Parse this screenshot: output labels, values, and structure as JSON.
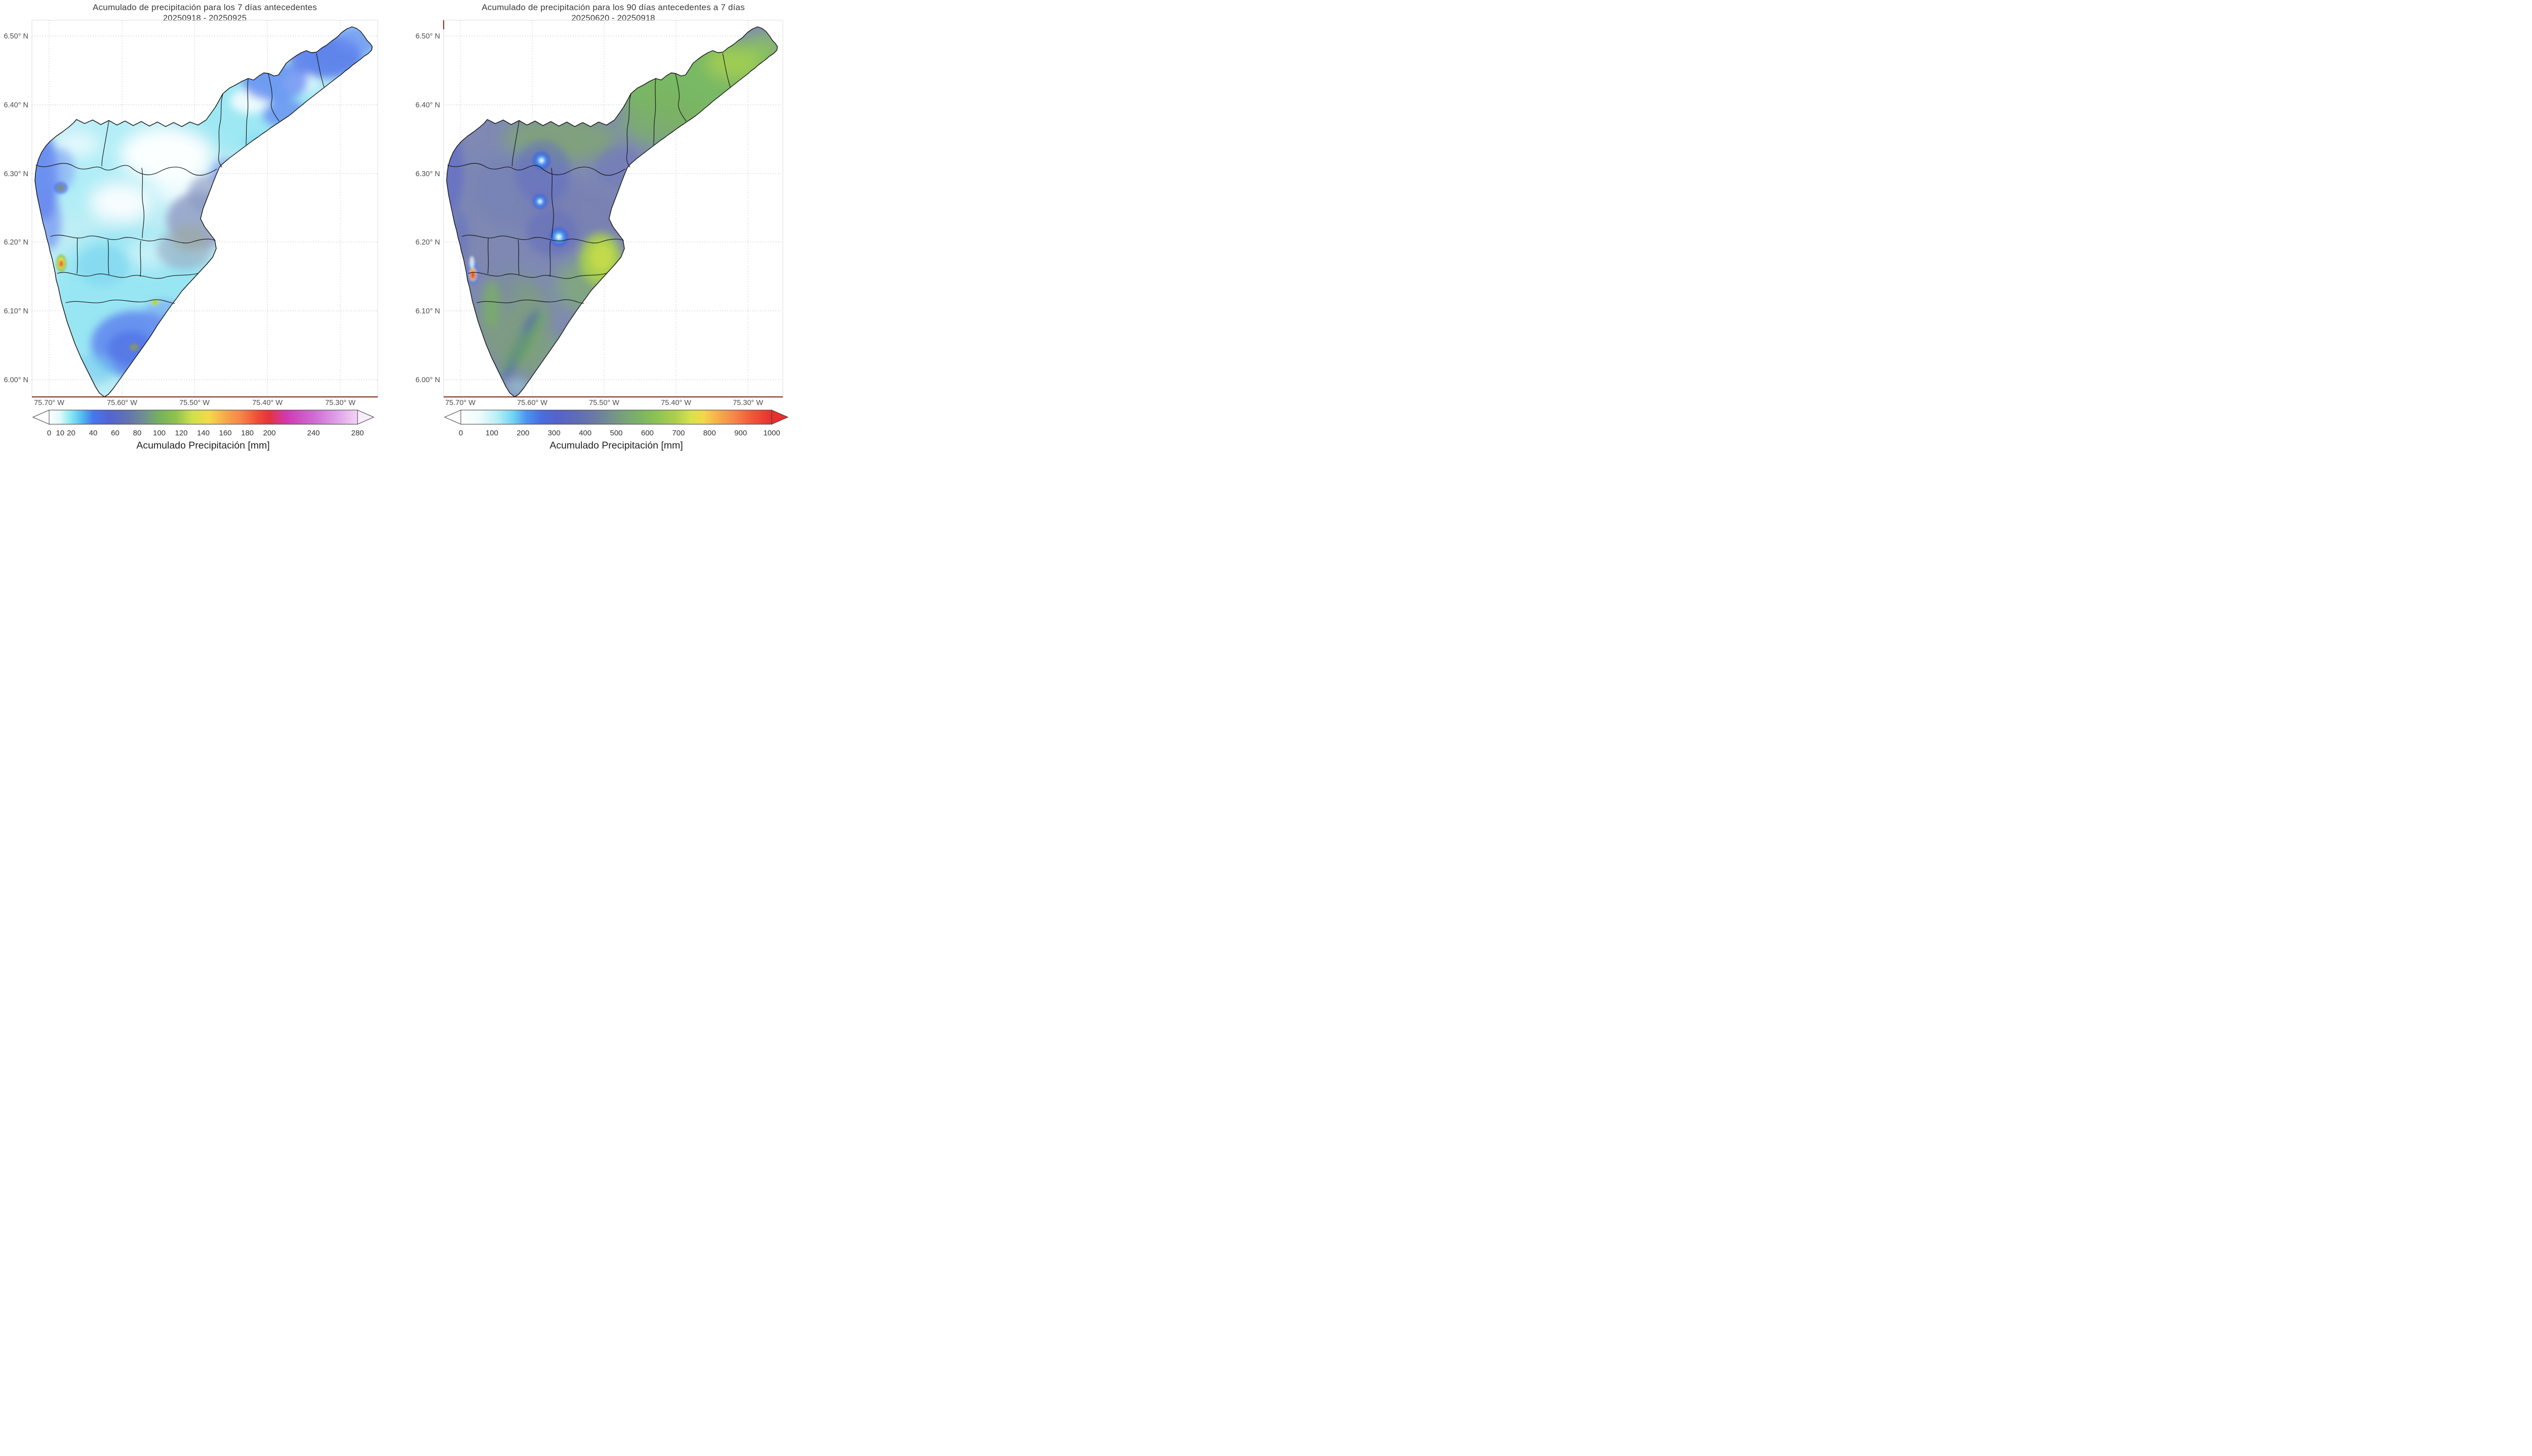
{
  "figure": {
    "background": "#ffffff",
    "spine_color": "#8a3b2c",
    "boundary_color": "#111111",
    "grid_style": "dotted light gray"
  },
  "chart_data": [
    {
      "type": "heatmap",
      "map_region": "Valle de Aburrá river basin with municipal boundaries",
      "title": "Acumulado de precipitación para los 7 días antecedentes",
      "subtitle": "20250918 - 20250925",
      "x_axis": {
        "ticks": [
          "75.70° W",
          "75.60° W",
          "75.50° W",
          "75.40° W",
          "75.30° W"
        ],
        "range_deg_west": [
          75.72,
          75.25
        ]
      },
      "y_axis": {
        "ticks": [
          "6.50° N",
          "6.40° N",
          "6.30° N",
          "6.20° N",
          "6.10° N",
          "6.00° N"
        ],
        "range_deg_north": [
          5.98,
          6.52
        ]
      },
      "colorbar": {
        "label": "Acumulado Precipitación [mm]",
        "orientation": "horizontal",
        "extend": "both",
        "vmin": 0,
        "vmax": 280,
        "tick_values": [
          0,
          10,
          20,
          40,
          60,
          80,
          100,
          120,
          140,
          160,
          180,
          200,
          240,
          280
        ],
        "stops": [
          [
            0,
            "#ffffff"
          ],
          [
            10,
            "#dff9fa"
          ],
          [
            20,
            "#86e7f3"
          ],
          [
            30,
            "#53b9f2"
          ],
          [
            40,
            "#4677ee"
          ],
          [
            55,
            "#5264d2"
          ],
          [
            70,
            "#6172b2"
          ],
          [
            85,
            "#6f8c95"
          ],
          [
            100,
            "#74b25e"
          ],
          [
            115,
            "#8fc24f"
          ],
          [
            130,
            "#cfe04a"
          ],
          [
            145,
            "#f4d94a"
          ],
          [
            160,
            "#f6a94a"
          ],
          [
            175,
            "#f7814a"
          ],
          [
            190,
            "#f04a37"
          ],
          [
            200,
            "#e5333f"
          ],
          [
            215,
            "#d238b0"
          ],
          [
            240,
            "#cd6bd2"
          ],
          [
            265,
            "#e2aaeb"
          ],
          [
            280,
            "#f3d4f6"
          ]
        ],
        "under_color": "#ffffff",
        "over_color": "#f9ecfb"
      },
      "field_values_mm": [
        {
          "area": "central and northern valley core",
          "value": "5-15"
        },
        {
          "area": "most of the basin",
          "value": "15-30"
        },
        {
          "area": "western rim strip near 75.68W 6.25-6.35N",
          "value": "40-70"
        },
        {
          "area": "northeast arm 6.38-6.50N",
          "value": "30-60"
        },
        {
          "area": "east-central gray patch near 75.47W 6.20N",
          "value": "60-90"
        },
        {
          "area": "southern lobe maximum near 75.57W 6.05N",
          "value": "40-70"
        },
        {
          "area": "local hotspot near 75.66W 6.15N",
          "value": "200-240"
        },
        {
          "area": "small spot near 75.53W 6.11N",
          "value": "100-130"
        }
      ]
    },
    {
      "type": "heatmap",
      "map_region": "Valle de Aburrá river basin with municipal boundaries",
      "title": "Acumulado de precipitación para los 90 días antecedentes a 7 días",
      "subtitle": "20250620 - 20250918",
      "x_axis": {
        "ticks": [
          "75.70° W",
          "75.60° W",
          "75.50° W",
          "75.40° W",
          "75.30° W"
        ],
        "range_deg_west": [
          75.72,
          75.25
        ]
      },
      "y_axis": {
        "ticks": [
          "6.50° N",
          "6.40° N",
          "6.30° N",
          "6.20° N",
          "6.10° N",
          "6.00° N"
        ],
        "range_deg_north": [
          5.98,
          6.52
        ]
      },
      "colorbar": {
        "label": "Acumulado Precipitación [mm]",
        "orientation": "horizontal",
        "extend": "both",
        "vmin": 0,
        "vmax": 1000,
        "tick_values": [
          0,
          100,
          200,
          300,
          400,
          500,
          600,
          700,
          800,
          900,
          1000
        ],
        "stops": [
          [
            0,
            "#ffffff"
          ],
          [
            60,
            "#eefbfc"
          ],
          [
            120,
            "#b5eef6"
          ],
          [
            170,
            "#6fd2f3"
          ],
          [
            210,
            "#4c94f0"
          ],
          [
            260,
            "#4a6ce0"
          ],
          [
            310,
            "#5463cb"
          ],
          [
            370,
            "#5f6cb6"
          ],
          [
            430,
            "#6b7aa4"
          ],
          [
            480,
            "#748f8f"
          ],
          [
            530,
            "#78a477"
          ],
          [
            580,
            "#7cb562"
          ],
          [
            630,
            "#8dc353"
          ],
          [
            690,
            "#accf4c"
          ],
          [
            740,
            "#d8e24a"
          ],
          [
            780,
            "#f3d74a"
          ],
          [
            830,
            "#f6ab4a"
          ],
          [
            880,
            "#f7854a"
          ],
          [
            930,
            "#f25c3c"
          ],
          [
            1000,
            "#e62f2e"
          ]
        ],
        "under_color": "#ffffff",
        "over_color": "#e62f2e"
      },
      "field_values_mm": [
        {
          "area": "basin overall",
          "value": "350-500"
        },
        {
          "area": "northeast arm",
          "value": "550-700"
        },
        {
          "area": "northern band",
          "value": "500-600"
        },
        {
          "area": "gauge bullseyes near 75.58W 6.32N, 75.58W 6.26N, 75.55W 6.20N",
          "value": "150-250"
        },
        {
          "area": "east-central bright patch near 75.48W 6.17N",
          "value": "650-750"
        },
        {
          "area": "local hotspot near 75.66W 6.15N",
          "value": "950-1000"
        },
        {
          "area": "southern lobe with dark-blue diagonal streak",
          "value": "300-600"
        },
        {
          "area": "western edge strip",
          "value": "250-350"
        }
      ]
    }
  ]
}
